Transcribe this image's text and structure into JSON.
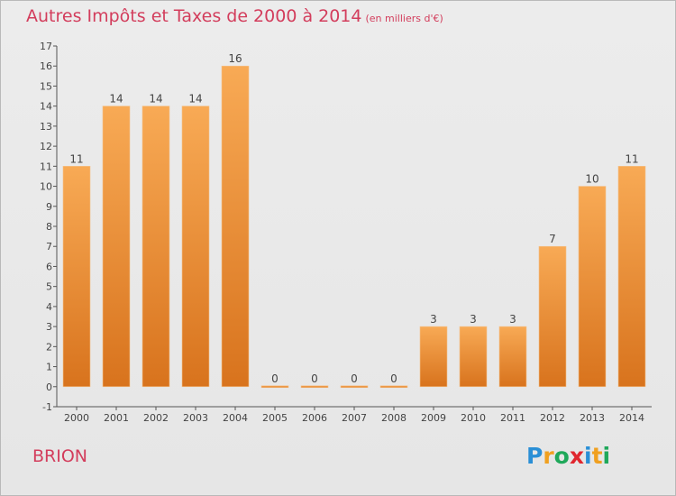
{
  "header": {
    "title": "Autres Impôts et Taxes de 2000 à 2014",
    "unit": "(en milliers d'€)"
  },
  "footer": {
    "town": "BRION",
    "logo_letters": [
      "P",
      "r",
      "o",
      "x",
      "i",
      "t",
      "i"
    ],
    "logo_colors": [
      "#2a8fd6",
      "#f0a020",
      "#1fa85a",
      "#e0262e",
      "#2a8fd6",
      "#f0a020",
      "#1fa85a"
    ]
  },
  "colors": {
    "bar_top": "#f8aa55",
    "bar_bottom": "#d8731d",
    "accent": "#d33d5c",
    "axis": "#555555"
  },
  "chart_data": {
    "type": "bar",
    "title": "Autres Impôts et Taxes de 2000 à 2014",
    "subtitle": "(en milliers d'€)",
    "xlabel": "",
    "ylabel": "",
    "categories": [
      "2000",
      "2001",
      "2002",
      "2003",
      "2004",
      "2005",
      "2006",
      "2007",
      "2008",
      "2009",
      "2010",
      "2011",
      "2012",
      "2013",
      "2014"
    ],
    "values": [
      11,
      14,
      14,
      14,
      16,
      0,
      0,
      0,
      0,
      3,
      3,
      3,
      7,
      10,
      11
    ],
    "data_labels": [
      "11",
      "14",
      "14",
      "14",
      "16",
      "0",
      "0",
      "0",
      "0",
      "3",
      "3",
      "3",
      "7",
      "10",
      "11"
    ],
    "ylim": [
      -1,
      17
    ],
    "yticks": [
      "-1",
      "0",
      "1",
      "2",
      "3",
      "4",
      "5",
      "6",
      "7",
      "8",
      "9",
      "10",
      "11",
      "12",
      "13",
      "14",
      "15",
      "16",
      "17"
    ],
    "grid": false,
    "legend": "none"
  }
}
